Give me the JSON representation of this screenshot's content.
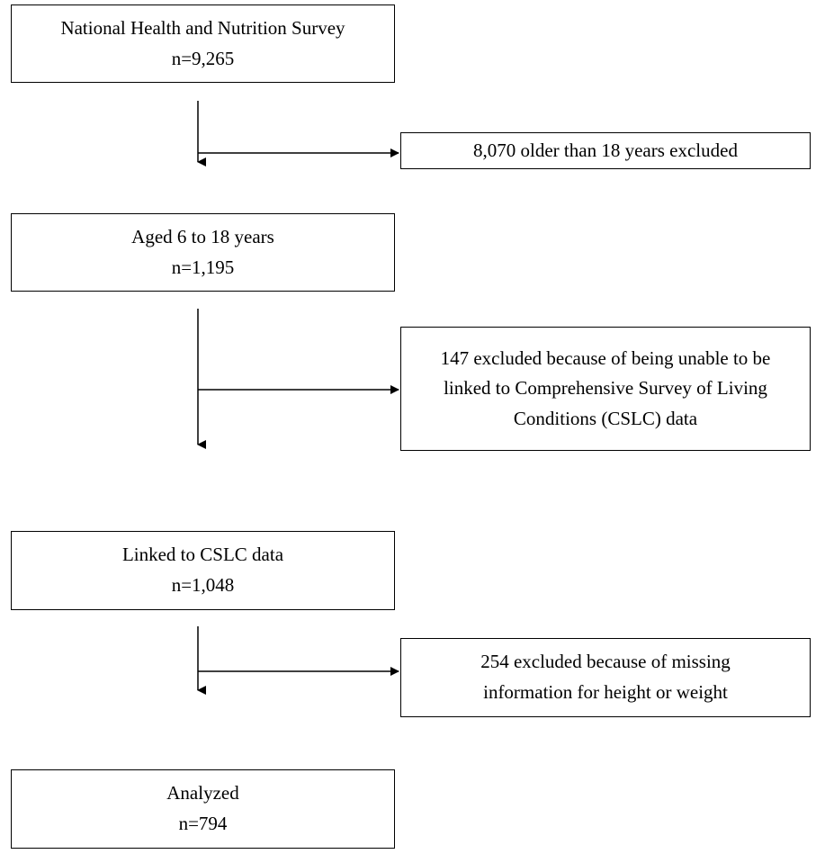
{
  "flow": {
    "steps": [
      {
        "label": "National Health and Nutrition Survey",
        "count": "n=9,265"
      },
      {
        "label": "Aged 6 to 18 years",
        "count": "n=1,195"
      },
      {
        "label": "Linked to CSLC data",
        "count": "n=1,048"
      },
      {
        "label": "Analyzed",
        "count": "n=794"
      }
    ],
    "exclusions": [
      {
        "lines": [
          "8,070 older than 18 years excluded"
        ]
      },
      {
        "lines": [
          "147 excluded because of being unable to be",
          "linked to Comprehensive Survey of Living",
          "Conditions (CSLC) data"
        ]
      },
      {
        "lines": [
          "254 excluded because of missing",
          "information for height or weight"
        ]
      }
    ]
  }
}
